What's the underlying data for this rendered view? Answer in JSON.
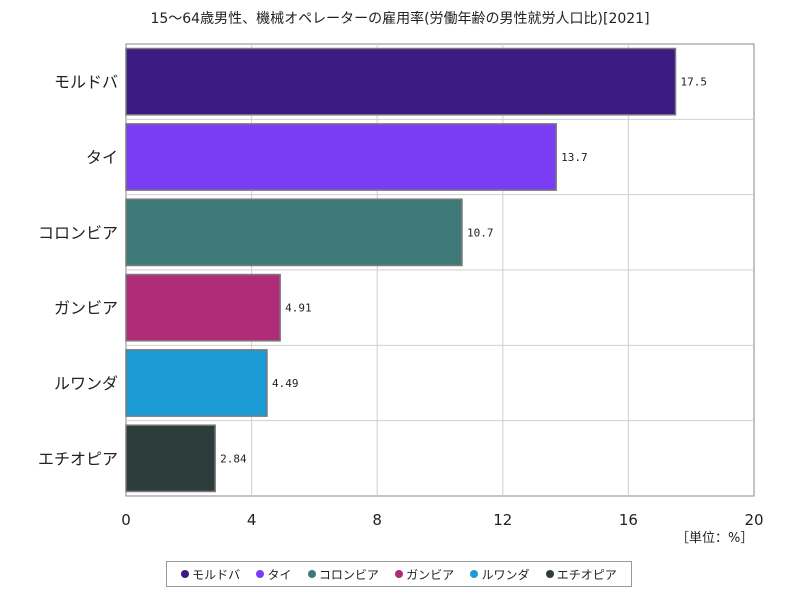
{
  "chart_data": {
    "type": "bar",
    "orientation": "horizontal",
    "title": "15〜64歳男性、機械オペレーターの雇用率(労働年齢の男性就労人口比)[2021]",
    "unit_label": "［単位：%］",
    "categories": [
      "モルドバ",
      "タイ",
      "コロンビア",
      "ガンビア",
      "ルワンダ",
      "エチオピア"
    ],
    "values": [
      17.5,
      13.7,
      10.7,
      4.91,
      4.49,
      2.84
    ],
    "value_labels": [
      "17.5",
      "13.7",
      "10.7",
      "4.91",
      "4.49",
      "2.84"
    ],
    "colors": [
      "#3b1a82",
      "#7b3cf5",
      "#3d7a78",
      "#b02c79",
      "#1b9bd3",
      "#2c3d3b"
    ],
    "xlim": [
      0,
      20
    ],
    "xticks": [
      "0",
      "4",
      "8",
      "12",
      "16",
      "20"
    ],
    "xtick_values": [
      0,
      4,
      8,
      12,
      16,
      20
    ],
    "grid": true,
    "legend_position": "bottom"
  }
}
